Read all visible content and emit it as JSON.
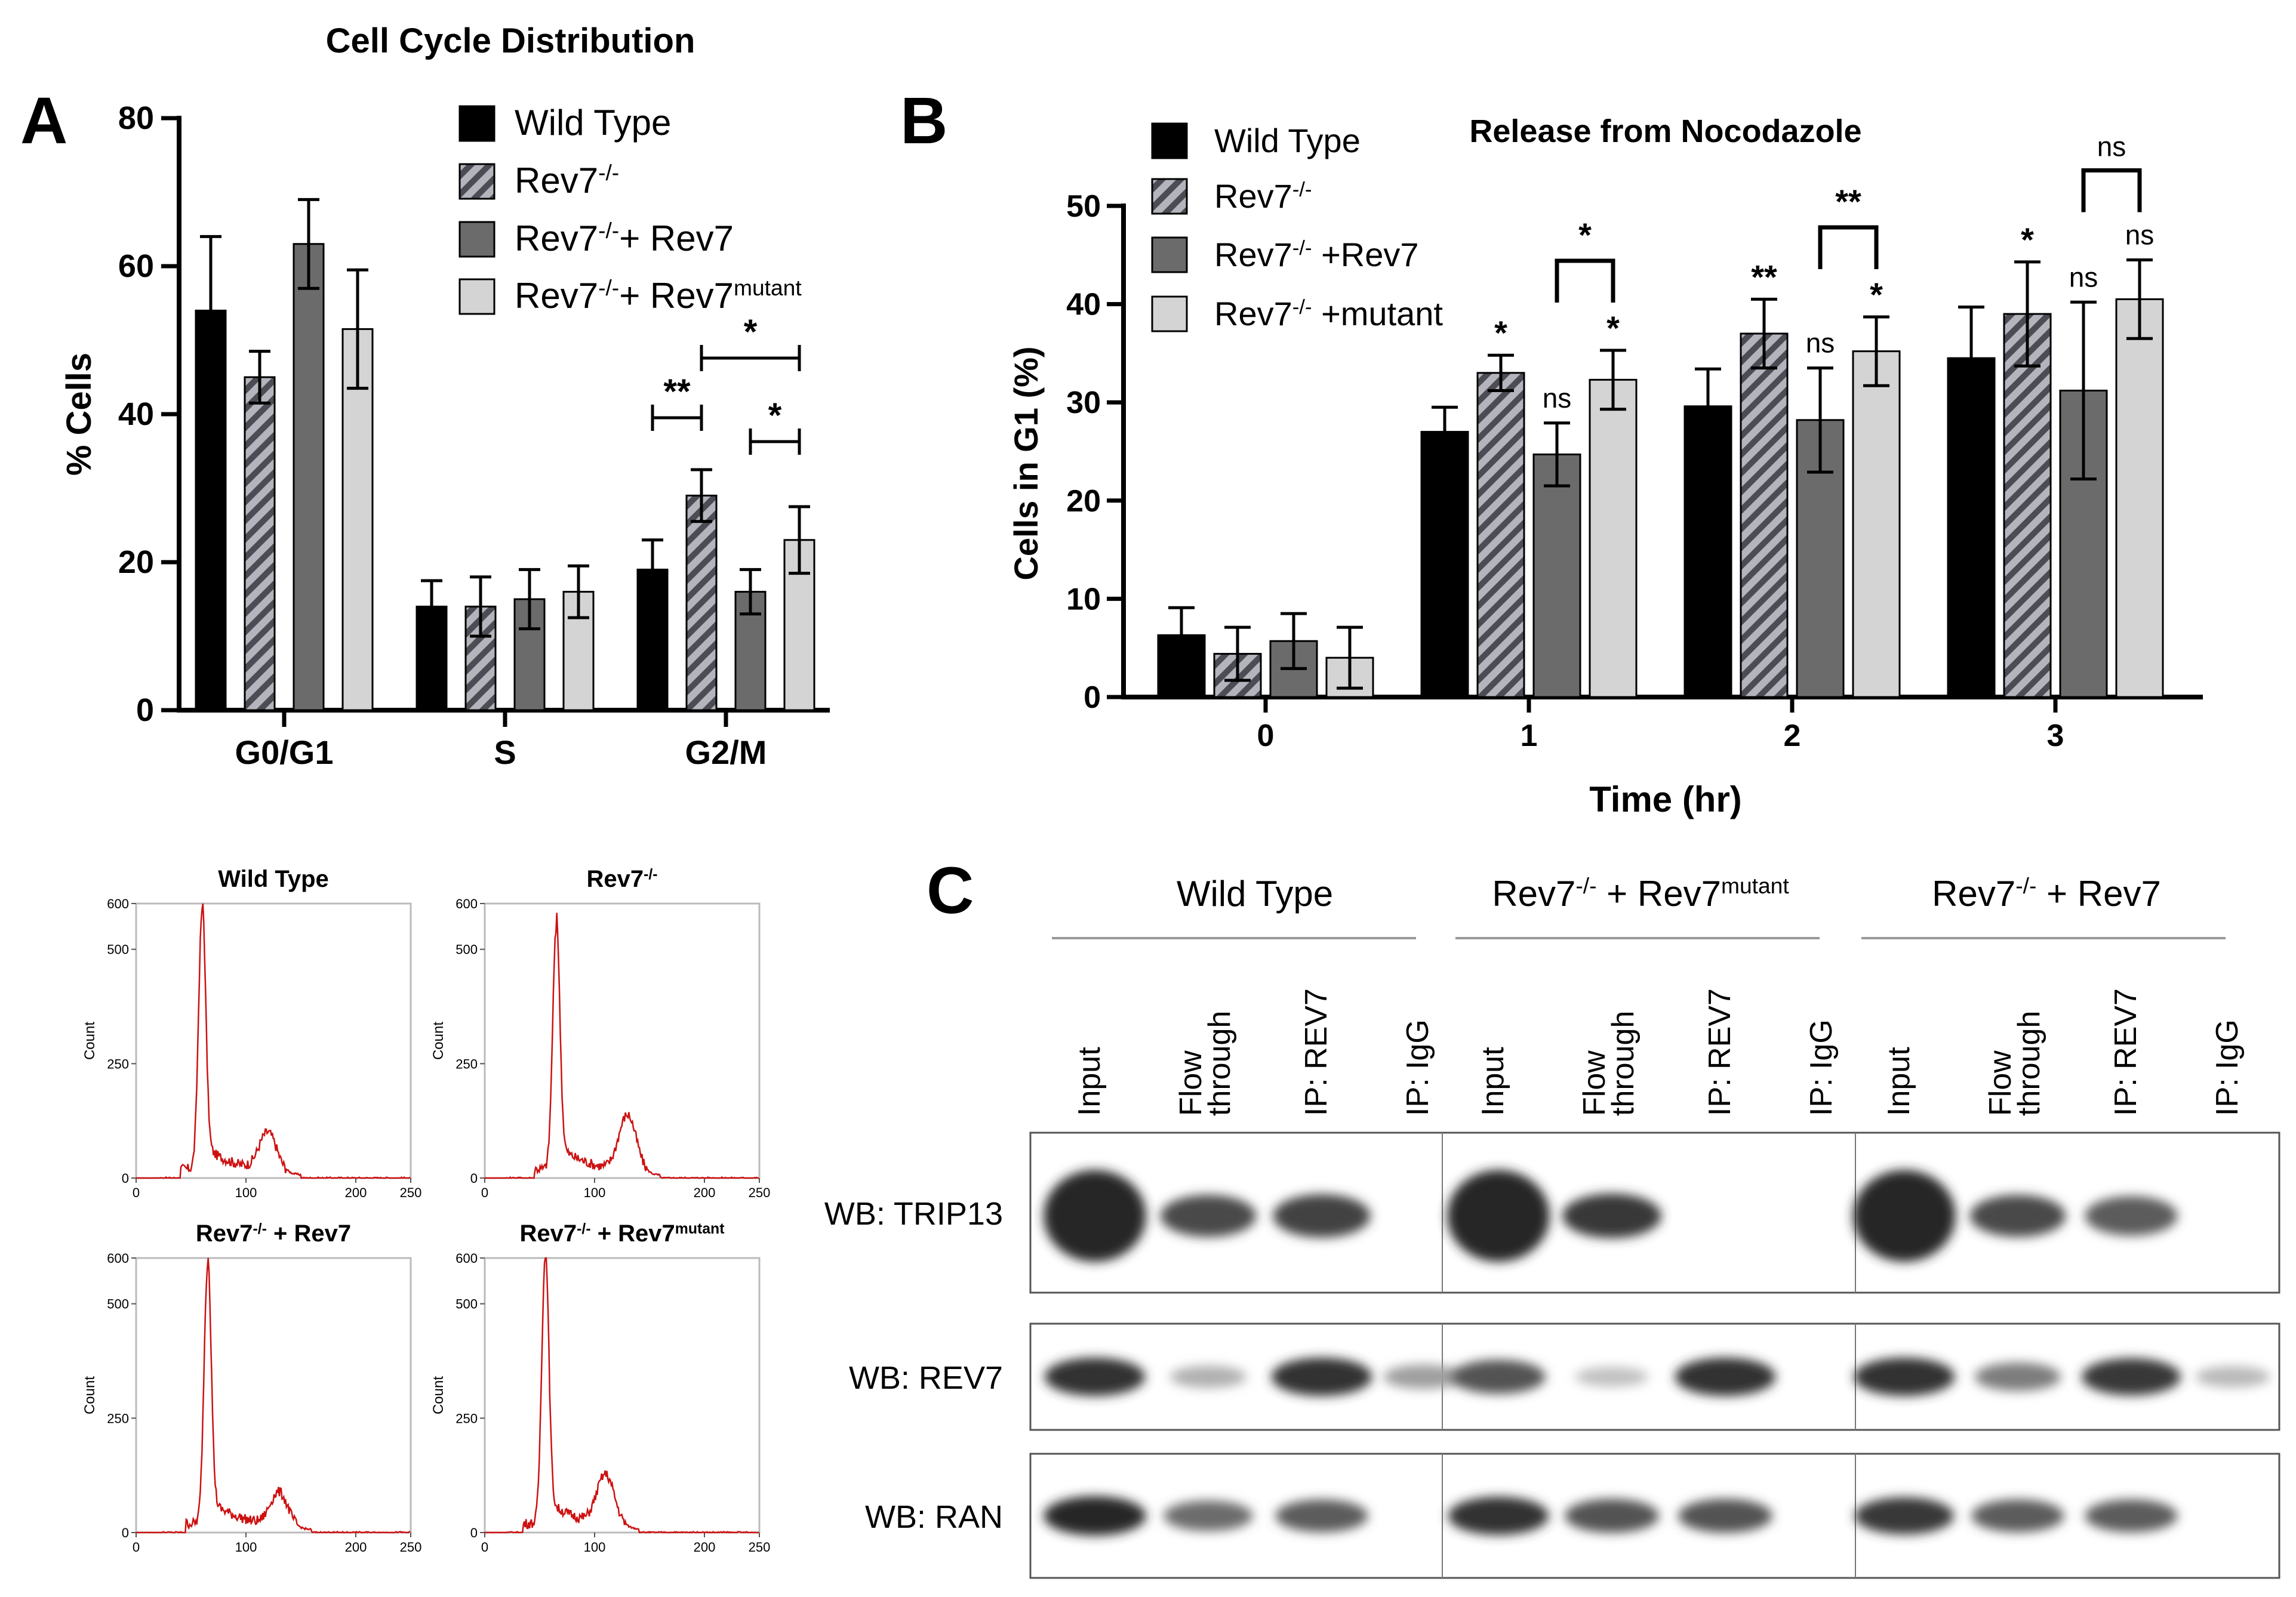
{
  "panel_labels": {
    "a": "A",
    "b": "B",
    "c": "C"
  },
  "colors": {
    "wild_type": "#000000",
    "knockout": "#8a8a8f",
    "rescue": "#6b6b6b",
    "mutant": "#d4d4d4",
    "histogram": "#cc1111"
  },
  "chart_data": [
    {
      "id": "panel-a",
      "type": "bar",
      "title": "Cell Cycle Distribution",
      "xlabel": "",
      "ylabel": "% Cells",
      "ylim": [
        0,
        80
      ],
      "yticks": [
        "0",
        "20",
        "40",
        "60",
        "80"
      ],
      "categories": [
        "G0/G1",
        "S",
        "G2/M"
      ],
      "legend": [
        {
          "base": "Wild Type",
          "sup": "",
          "tail": ""
        },
        {
          "base": "Rev7",
          "sup": "-/-",
          "tail": ""
        },
        {
          "base": "Rev7",
          "sup": "-/-",
          "tail": "+ Rev7"
        },
        {
          "base": "Rev7",
          "sup": "-/-",
          "tail": "+ Rev7",
          "sup2": "mutant"
        }
      ],
      "series": [
        {
          "name": "Wild Type",
          "values": [
            54,
            14,
            19
          ],
          "errors": [
            10,
            3.5,
            4
          ]
        },
        {
          "name": "Rev7-/-",
          "values": [
            45,
            14,
            29
          ],
          "errors": [
            3.5,
            4,
            3.5
          ]
        },
        {
          "name": "Rev7-/- + Rev7",
          "values": [
            63,
            15,
            16
          ],
          "errors": [
            6,
            4,
            3
          ]
        },
        {
          "name": "Rev7-/- + Rev7 mutant",
          "values": [
            51.5,
            16,
            23
          ],
          "errors": [
            8,
            3.5,
            4.5
          ]
        }
      ],
      "significance": [
        {
          "label": "**",
          "category": 2,
          "from_series": 0,
          "to_series": 1,
          "level": 1
        },
        {
          "label": "*",
          "category": 2,
          "from_series": 1,
          "to_series": 3,
          "level": 2
        },
        {
          "label": "*",
          "category": 2,
          "from_series": 2,
          "to_series": 3,
          "level": 0
        }
      ]
    },
    {
      "id": "panel-b",
      "type": "bar",
      "title": "Release from Nocodazole",
      "xlabel": "Time (hr)",
      "ylabel": "Cells in G1 (%)",
      "ylim": [
        0,
        50
      ],
      "yticks": [
        "0",
        "10",
        "20",
        "30",
        "40",
        "50"
      ],
      "categories": [
        "0",
        "1",
        "2",
        "3"
      ],
      "legend": [
        {
          "base": "Wild Type",
          "sup": "",
          "tail": ""
        },
        {
          "base": "Rev7",
          "sup": "-/-",
          "tail": ""
        },
        {
          "base": "Rev7",
          "sup": "-/-",
          "tail": " +Rev7"
        },
        {
          "base": "Rev7",
          "sup": "-/-",
          "tail": " +mutant"
        }
      ],
      "series": [
        {
          "name": "Wild Type",
          "values": [
            6.3,
            27,
            29.6,
            34.5
          ],
          "errors": [
            2.8,
            2.5,
            3.8,
            5.2
          ]
        },
        {
          "name": "Rev7-/-",
          "values": [
            4.4,
            33,
            37,
            39
          ],
          "errors": [
            2.7,
            1.8,
            3.5,
            5.3
          ]
        },
        {
          "name": "Rev7-/- +Rev7",
          "values": [
            5.7,
            24.7,
            28.2,
            31.2
          ],
          "errors": [
            2.8,
            3.2,
            5.3,
            9
          ]
        },
        {
          "name": "Rev7-/- +mutant",
          "values": [
            4,
            32.3,
            35.2,
            40.5
          ],
          "errors": [
            3.1,
            3,
            3.5,
            4
          ]
        }
      ],
      "annotations": [
        {
          "category": 1,
          "series": 1,
          "label": "*"
        },
        {
          "category": 1,
          "series": 2,
          "label": "ns"
        },
        {
          "category": 1,
          "series": 3,
          "label": "*"
        },
        {
          "category": 2,
          "series": 1,
          "label": "**"
        },
        {
          "category": 2,
          "series": 2,
          "label": "ns"
        },
        {
          "category": 2,
          "series": 3,
          "label": "*"
        },
        {
          "category": 3,
          "series": 1,
          "label": "*"
        },
        {
          "category": 3,
          "series": 2,
          "label": "ns"
        },
        {
          "category": 3,
          "series": 3,
          "label": "ns"
        }
      ],
      "brackets": [
        {
          "category": 1,
          "label": "*"
        },
        {
          "category": 2,
          "label": "**"
        },
        {
          "category": 3,
          "label": "ns"
        }
      ]
    }
  ],
  "histograms": {
    "x_ticks": [
      "0",
      "100",
      "200",
      "250"
    ],
    "y_ticks": [
      "0",
      "250",
      "500",
      "600"
    ],
    "ylabel": "Count",
    "plots": [
      {
        "title_base": "Wild Type",
        "title_sup": "",
        "title_tail": "",
        "title_sup2": "",
        "g1_peak": 560,
        "g2_peak": 85
      },
      {
        "title_base": "Rev7",
        "title_sup": "-/-",
        "title_tail": "",
        "title_sup2": "",
        "g1_peak": 520,
        "g2_peak": 125
      },
      {
        "title_base": "Rev7",
        "title_sup": "-/-",
        "title_tail": " + Rev7",
        "title_sup2": "",
        "g1_peak": 560,
        "g2_peak": 75
      },
      {
        "title_base": "Rev7",
        "title_sup": "-/-",
        "title_tail": " + Rev7",
        "title_sup2": "mutant",
        "g1_peak": 580,
        "g2_peak": 110
      }
    ]
  },
  "western": {
    "groups": [
      {
        "base": "Wild Type",
        "sup": "",
        "tail": "",
        "sup2": ""
      },
      {
        "base": "Rev7",
        "sup": "-/-",
        "tail": " + Rev7",
        "sup2": "mutant"
      },
      {
        "base": "Rev7",
        "sup": "-/-",
        "tail": " + Rev7",
        "sup2": ""
      }
    ],
    "lanes": [
      "Input",
      "Flow through",
      "IP: REV7",
      "IP: IgG"
    ],
    "blots": [
      {
        "label": "WB: TRIP13",
        "intensity": [
          [
            1,
            0.8,
            0.85,
            0
          ],
          [
            1,
            0.9,
            0,
            0
          ],
          [
            1,
            0.8,
            0.7,
            0
          ]
        ]
      },
      {
        "label": "WB: REV7",
        "intensity": [
          [
            0.95,
            0.2,
            0.95,
            0.3
          ],
          [
            0.75,
            0.1,
            0.95,
            0
          ],
          [
            0.95,
            0.5,
            0.9,
            0.15
          ]
        ]
      },
      {
        "label": "WB: RAN",
        "intensity": [
          [
            1,
            0.6,
            0.7,
            0
          ],
          [
            0.95,
            0.75,
            0.75,
            0
          ],
          [
            0.9,
            0.7,
            0.7,
            0
          ]
        ]
      }
    ]
  }
}
